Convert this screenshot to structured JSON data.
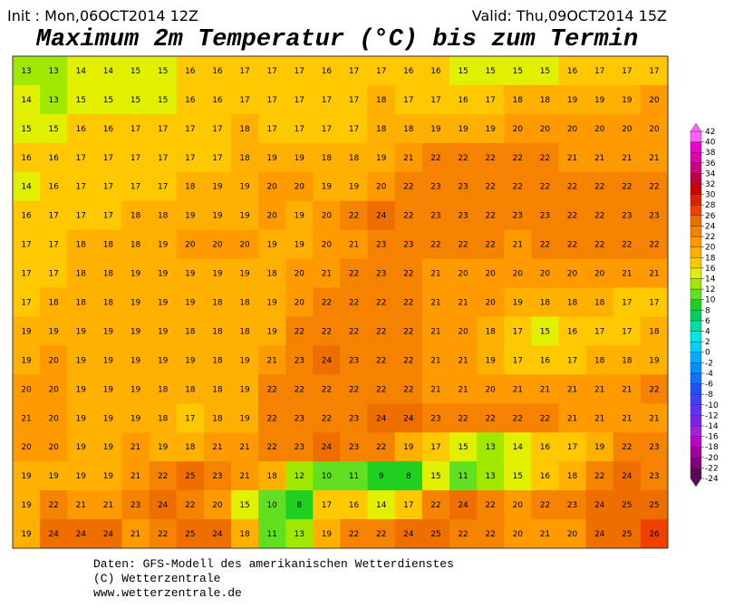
{
  "header": {
    "init": "Init : Mon,06OCT2014 12Z",
    "valid": "Valid: Thu,09OCT2014 15Z",
    "title": "Maximum 2m Temperatur (°C) bis zum Termin"
  },
  "map": {
    "values": [
      [
        13,
        13,
        14,
        14,
        15,
        15,
        16,
        16,
        17,
        17,
        17,
        16,
        17,
        17,
        16,
        16,
        15,
        15,
        15,
        15,
        16,
        17,
        17,
        17
      ],
      [
        14,
        13,
        15,
        15,
        15,
        15,
        16,
        16,
        17,
        17,
        17,
        17,
        17,
        18,
        17,
        17,
        16,
        17,
        18,
        18,
        19,
        19,
        19,
        20
      ],
      [
        15,
        15,
        16,
        16,
        17,
        17,
        17,
        17,
        18,
        17,
        17,
        17,
        17,
        18,
        18,
        19,
        19,
        19,
        20,
        20,
        20,
        20,
        20,
        20
      ],
      [
        16,
        16,
        17,
        17,
        17,
        17,
        17,
        17,
        18,
        19,
        19,
        18,
        18,
        19,
        21,
        22,
        22,
        22,
        22,
        22,
        21,
        21,
        21,
        21
      ],
      [
        14,
        16,
        17,
        17,
        17,
        17,
        18,
        19,
        19,
        20,
        20,
        19,
        19,
        20,
        22,
        23,
        23,
        22,
        22,
        22,
        22,
        22,
        22,
        22
      ],
      [
        16,
        17,
        17,
        17,
        18,
        18,
        19,
        19,
        19,
        20,
        19,
        20,
        22,
        24,
        22,
        23,
        23,
        22,
        23,
        23,
        22,
        22,
        23,
        23
      ],
      [
        17,
        17,
        18,
        18,
        18,
        19,
        20,
        20,
        20,
        19,
        19,
        20,
        21,
        23,
        23,
        22,
        22,
        22,
        21,
        22,
        22,
        22,
        22,
        22
      ],
      [
        17,
        17,
        18,
        18,
        19,
        19,
        19,
        19,
        19,
        18,
        20,
        21,
        22,
        23,
        22,
        21,
        20,
        20,
        20,
        20,
        20,
        20,
        21,
        21
      ],
      [
        17,
        18,
        18,
        18,
        19,
        19,
        19,
        18,
        18,
        19,
        20,
        22,
        22,
        22,
        22,
        21,
        21,
        20,
        19,
        18,
        18,
        18,
        17,
        17
      ],
      [
        19,
        19,
        19,
        19,
        19,
        19,
        18,
        18,
        18,
        19,
        22,
        22,
        22,
        22,
        22,
        21,
        20,
        18,
        17,
        15,
        16,
        17,
        17,
        18
      ],
      [
        19,
        20,
        19,
        19,
        19,
        19,
        19,
        18,
        19,
        21,
        23,
        24,
        23,
        22,
        22,
        21,
        21,
        19,
        17,
        16,
        17,
        18,
        18,
        19
      ],
      [
        20,
        20,
        19,
        19,
        19,
        18,
        18,
        18,
        19,
        22,
        22,
        22,
        22,
        22,
        22,
        21,
        21,
        20,
        21,
        21,
        21,
        21,
        21,
        22
      ],
      [
        21,
        20,
        19,
        19,
        19,
        18,
        17,
        18,
        19,
        22,
        23,
        22,
        23,
        24,
        24,
        23,
        22,
        22,
        22,
        22,
        21,
        21,
        21,
        21
      ],
      [
        20,
        20,
        19,
        19,
        21,
        19,
        18,
        21,
        21,
        22,
        23,
        24,
        23,
        22,
        19,
        17,
        15,
        13,
        14,
        16,
        17,
        19,
        22,
        23
      ],
      [
        19,
        19,
        19,
        19,
        21,
        22,
        25,
        23,
        21,
        18,
        12,
        10,
        11,
        9,
        8,
        15,
        11,
        13,
        15,
        16,
        18,
        22,
        24,
        23
      ],
      [
        19,
        22,
        21,
        21,
        23,
        24,
        22,
        20,
        15,
        10,
        8,
        17,
        16,
        14,
        17,
        22,
        24,
        22,
        20,
        22,
        23,
        24,
        25,
        25
      ],
      [
        19,
        24,
        24,
        24,
        21,
        22,
        25,
        24,
        18,
        11,
        13,
        19,
        22,
        22,
        24,
        25,
        22,
        22,
        20,
        21,
        20,
        24,
        25,
        26
      ]
    ]
  },
  "colorbar": {
    "ticks": [
      -24,
      -22,
      -20,
      -18,
      -16,
      -14,
      -12,
      -10,
      -8,
      -6,
      -4,
      -2,
      0,
      2,
      4,
      6,
      8,
      10,
      12,
      14,
      16,
      18,
      20,
      22,
      24,
      26,
      28,
      30,
      32,
      34,
      36,
      38,
      40,
      42
    ],
    "colors": [
      "#5a0a5a",
      "#800080",
      "#a000a0",
      "#c000c0",
      "#a020e0",
      "#8020f0",
      "#6030ff",
      "#4040ff",
      "#2050ff",
      "#1070ff",
      "#0090ff",
      "#00b0ff",
      "#00d0ff",
      "#00e8e0",
      "#00e0a0",
      "#00d060",
      "#20d020",
      "#60e020",
      "#a0e800",
      "#e0f000",
      "#ffc800",
      "#ffb000",
      "#ff9a00",
      "#f58200",
      "#ee6e00",
      "#f04000",
      "#e02000",
      "#d00000",
      "#c00040",
      "#d00080",
      "#e000b0",
      "#f000d0",
      "#ff60ff"
    ]
  },
  "footer": {
    "line1": "Daten: GFS-Modell des amerikanischen Wetterdienstes",
    "line2": "(C) Wetterzentrale",
    "line3": "www.wetterzentrale.de"
  }
}
